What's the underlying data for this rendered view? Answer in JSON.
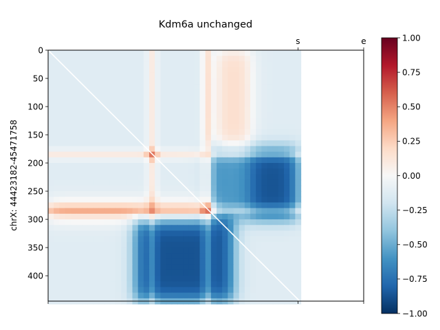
{
  "chart_data": [
    {
      "type": "heatmap",
      "title": "Kdm6a unchanged",
      "ylabel": "chrX: 44423182-45471758",
      "xlabel": "",
      "matrix_size": 445,
      "xlim": [
        0,
        562
      ],
      "ylim": [
        445,
        0
      ],
      "yticks": [
        0,
        50,
        100,
        150,
        200,
        250,
        300,
        350,
        400
      ],
      "top_ticks": [
        {
          "label": "s",
          "value": 445
        },
        {
          "label": "e",
          "value": 562
        }
      ],
      "bottom_ticks": [
        0,
        445,
        562
      ],
      "diagonal": "white line",
      "anchors": [
        {
          "position": 185,
          "value": 0.45
        },
        {
          "position": 283,
          "value": 0.55
        }
      ],
      "regions": [
        {
          "rows": [
            175,
            300
          ],
          "cols": [
            290,
            445
          ],
          "value": -0.75,
          "note": "strong blue block, upper-right"
        },
        {
          "rows": [
            300,
            445
          ],
          "cols": [
            155,
            330
          ],
          "value": -0.75,
          "note": "strong blue block, lower triangle"
        },
        {
          "rows": [
            0,
            300
          ],
          "cols": [
            300,
            360
          ],
          "value": 0.3,
          "note": "red vertical stripe"
        },
        {
          "rows": [
            270,
            300
          ],
          "cols": [
            0,
            300
          ],
          "value": 0.35,
          "note": "red horizontal stripe"
        }
      ],
      "value_range": [
        -1.0,
        1.0
      ],
      "colormap": "RdBu_r"
    },
    {
      "type": "colorbar",
      "ticks": [
        "1.00",
        "0.75",
        "0.50",
        "0.25",
        "0.00",
        "−0.25",
        "−0.50",
        "−0.75",
        "−1.00"
      ],
      "tick_values": [
        1.0,
        0.75,
        0.5,
        0.25,
        0.0,
        -0.25,
        -0.5,
        -0.75,
        -1.0
      ],
      "range": [
        -1.0,
        1.0
      ],
      "colors": [
        "#053061",
        "#2166ac",
        "#4393c3",
        "#92c5de",
        "#d1e5f0",
        "#f7f7f7",
        "#fddbc7",
        "#f4a582",
        "#d6604d",
        "#b2182b",
        "#67001f"
      ]
    }
  ]
}
